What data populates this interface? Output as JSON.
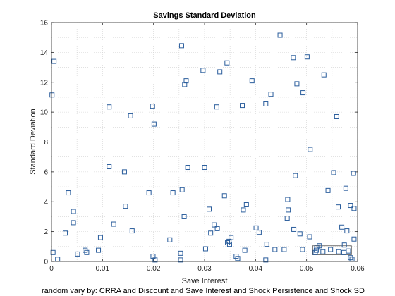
{
  "chart_data": {
    "type": "scatter",
    "title": "Savings Standard Deviation",
    "xlabel": "Save Interest",
    "ylabel": "Standard Deviation",
    "caption": "random vary by: CRRA and Discount and Save Interest and Shock Persistence and Shock SD",
    "xlim": [
      0,
      0.06
    ],
    "ylim": [
      0,
      16
    ],
    "xticks": [
      0,
      0.01,
      0.02,
      0.03,
      0.04,
      0.05,
      0.06
    ],
    "yticks": [
      0,
      2,
      4,
      6,
      8,
      10,
      12,
      14,
      16
    ],
    "grid": "dotted",
    "marker": "square",
    "marker_color": "#2a5d9c",
    "highlight_box": {
      "x": [
        0.0512,
        0.0588
      ],
      "y": [
        0.45,
        1.05
      ]
    },
    "series": [
      {
        "x": [
          0.0003,
          0.0005,
          0.0001,
          0.0012,
          0.0027,
          0.0033,
          0.0043,
          0.0043,
          0.0051,
          0.0066,
          0.0069,
          0.0092,
          0.0096,
          0.0113,
          0.0113,
          0.0122,
          0.0143,
          0.0145,
          0.0155,
          0.0158,
          0.0191,
          0.0198,
          0.0199,
          0.0201,
          0.0203,
          0.0232,
          0.0238,
          0.0253,
          0.0253,
          0.0255,
          0.0256,
          0.026,
          0.0261,
          0.0264,
          0.0267,
          0.0297,
          0.03,
          0.0302,
          0.0309,
          0.0312,
          0.0319,
          0.0324,
          0.0325,
          0.033,
          0.0339,
          0.0344,
          0.0345,
          0.0348,
          0.0349,
          0.0352,
          0.0362,
          0.0365,
          0.0374,
          0.0376,
          0.0379,
          0.0382,
          0.0393,
          0.0401,
          0.0407,
          0.042,
          0.042,
          0.0422,
          0.043,
          0.0438,
          0.0448,
          0.0456,
          0.0462,
          0.0463,
          0.0464,
          0.0474,
          0.0475,
          0.0478,
          0.0481,
          0.0487,
          0.0492,
          0.0493,
          0.0501,
          0.0506,
          0.0507,
          0.0517,
          0.0519,
          0.052,
          0.0525,
          0.0532,
          0.0534,
          0.0542,
          0.0547,
          0.0553,
          0.0559,
          0.0562,
          0.0563,
          0.0569,
          0.0573,
          0.0574,
          0.0577,
          0.0579,
          0.0582,
          0.0586,
          0.0586,
          0.0589,
          0.0592,
          0.0593,
          0.0593
        ],
        "y": [
          0.6,
          13.4,
          11.15,
          0.15,
          1.9,
          4.6,
          3.35,
          2.6,
          0.5,
          0.75,
          0.6,
          0.75,
          1.6,
          6.35,
          10.35,
          2.5,
          6.0,
          3.7,
          9.75,
          2.05,
          4.6,
          10.4,
          0.35,
          9.2,
          0.1,
          1.45,
          4.6,
          0.55,
          0.1,
          14.45,
          4.8,
          3.0,
          11.85,
          12.1,
          6.3,
          12.8,
          6.3,
          0.85,
          3.5,
          1.9,
          2.45,
          10.35,
          2.2,
          12.7,
          4.4,
          13.3,
          1.25,
          1.35,
          1.15,
          1.6,
          0.35,
          0.2,
          10.45,
          3.45,
          0.75,
          3.8,
          12.1,
          2.25,
          1.95,
          0.1,
          10.55,
          1.15,
          11.2,
          0.8,
          15.15,
          0.8,
          2.9,
          4.15,
          3.45,
          13.65,
          2.15,
          5.75,
          11.9,
          1.85,
          0.8,
          11.3,
          13.7,
          1.65,
          7.5,
          0.6,
          0.75,
          0.95,
          1.05,
          0.65,
          12.5,
          4.75,
          0.8,
          5.95,
          9.7,
          3.65,
          0.65,
          2.3,
          0.6,
          1.1,
          4.9,
          2.05,
          0.7,
          0.25,
          3.75,
          0.15,
          5.9,
          3.55,
          1.5
        ]
      }
    ]
  }
}
